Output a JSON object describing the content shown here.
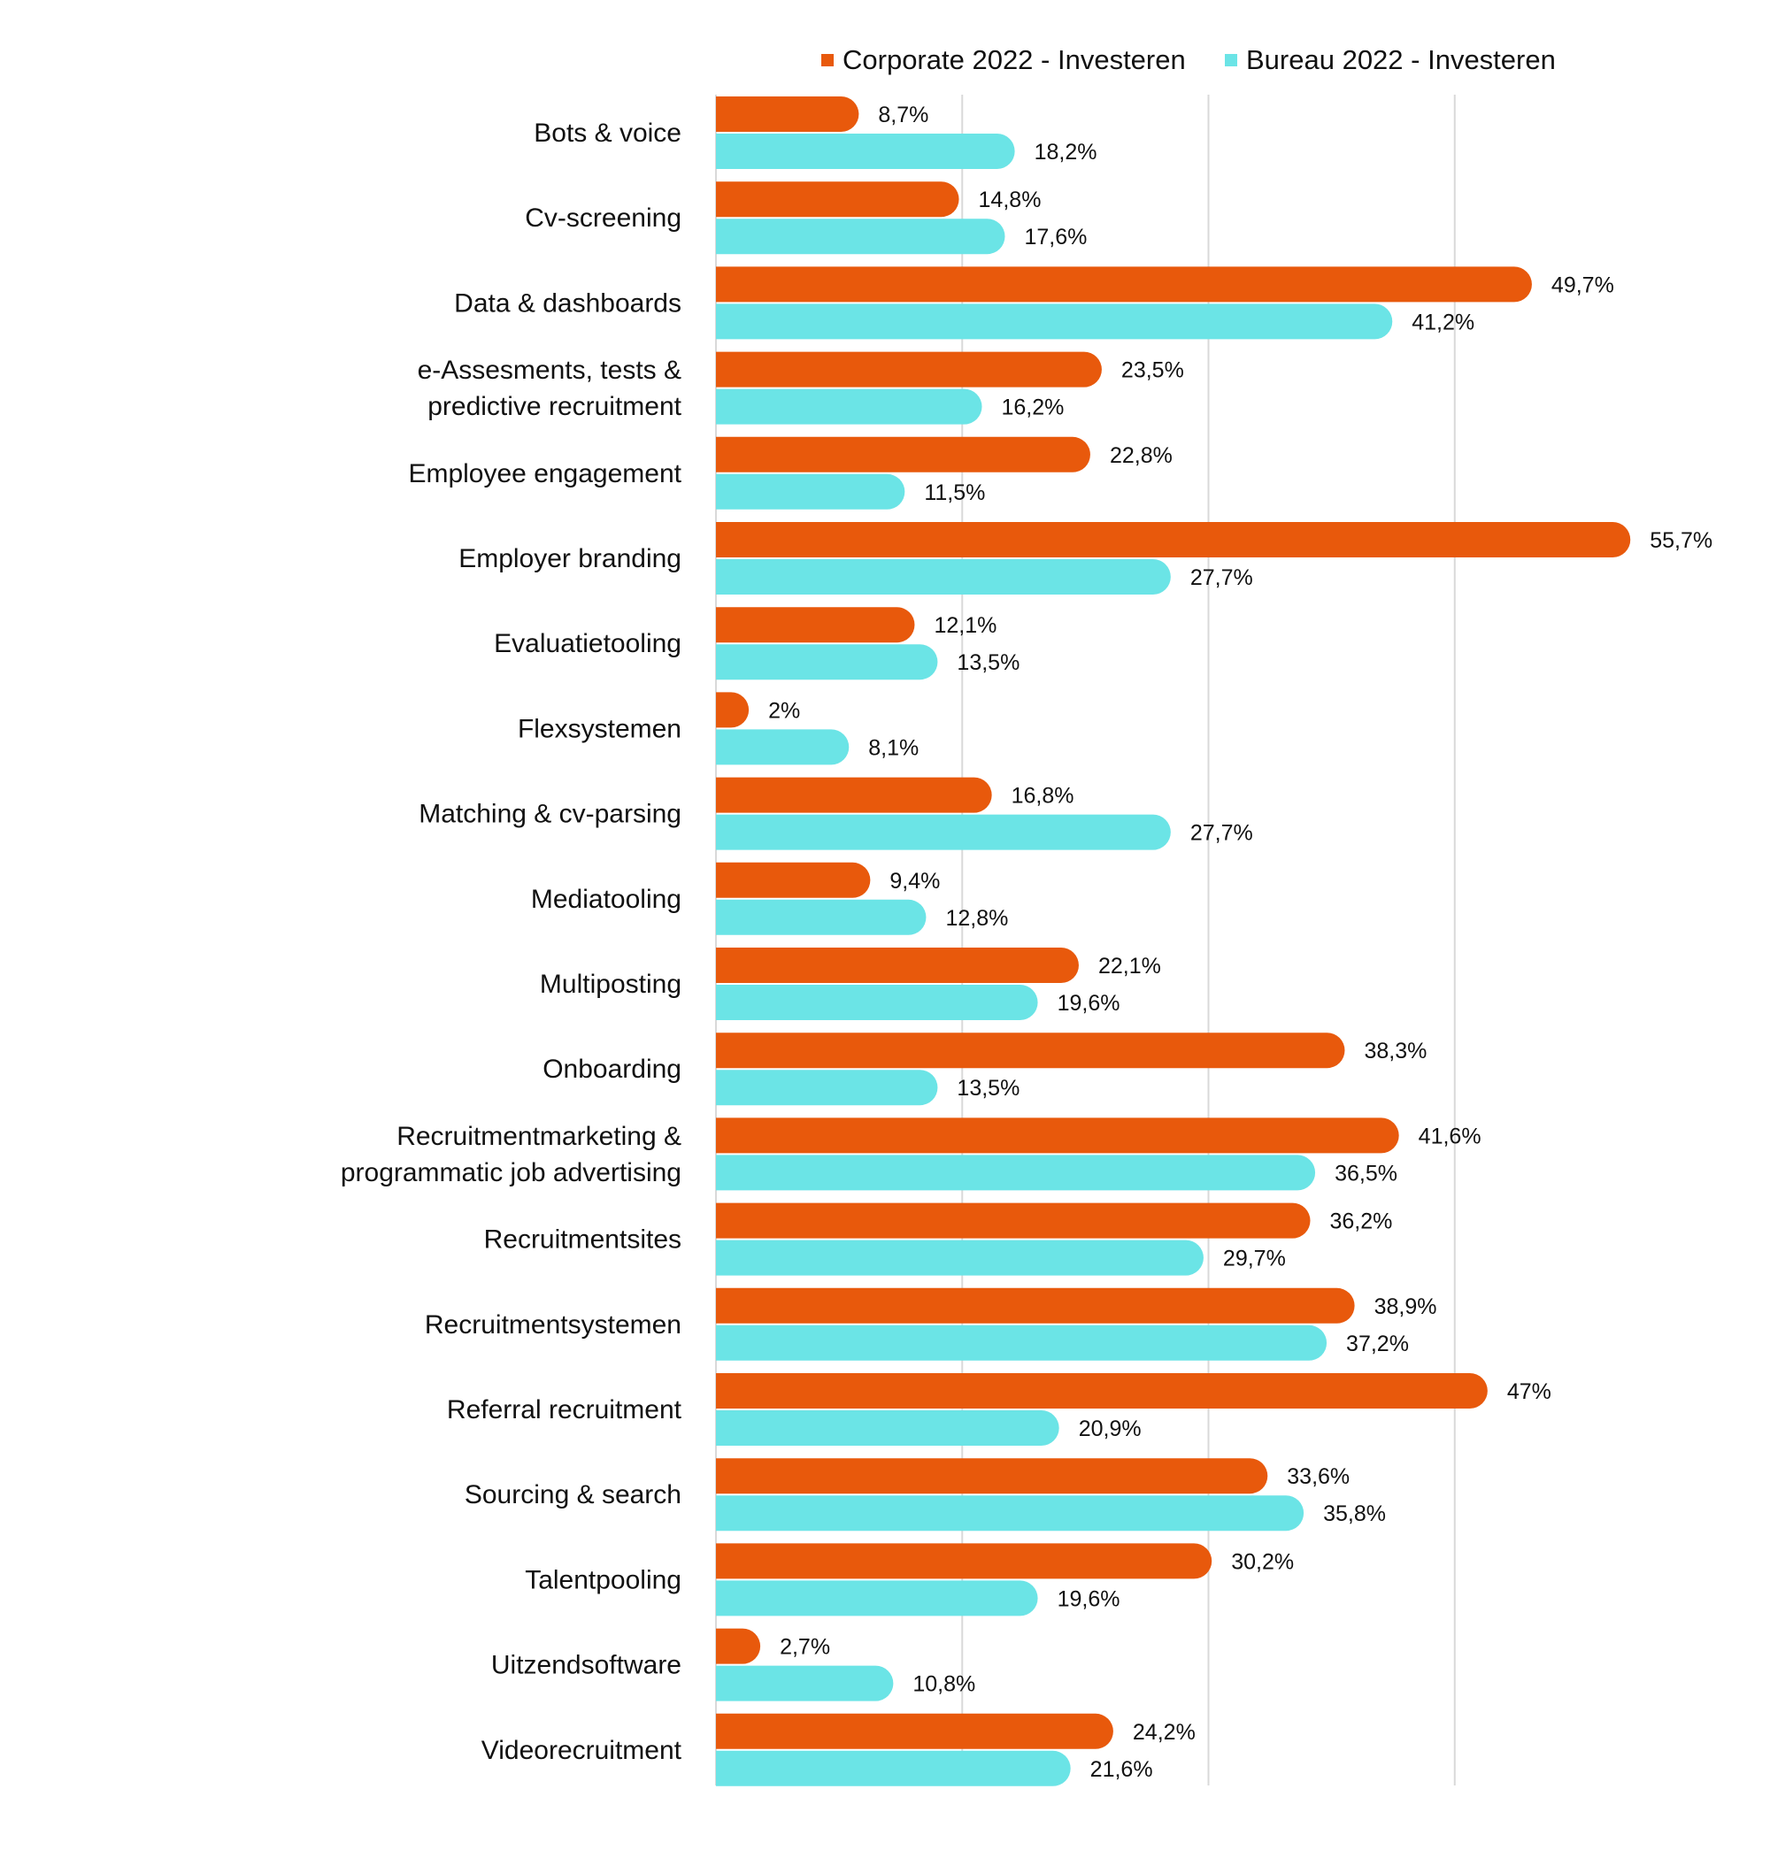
{
  "chart_data": {
    "type": "bar",
    "orientation": "horizontal",
    "title": "",
    "xlabel": "",
    "ylabel": "",
    "xlim": [
      0,
      60
    ],
    "grid": true,
    "legend_position": "top",
    "categories": [
      "Bots & voice",
      "Cv-screening",
      "Data & dashboards",
      "e-Assesments, tests & \npredictive recruitment",
      "Employee engagement",
      "Employer branding",
      "Evaluatietooling",
      "Flexsystemen",
      "Matching & cv-parsing",
      "Mediatooling",
      "Multiposting",
      "Onboarding",
      "Recruitmentmarketing & \nprogrammatic job advertising",
      "Recruitmentsites",
      "Recruitmentsystemen",
      "Referral recruitment",
      "Sourcing & search",
      "Talentpooling",
      "Uitzendsoftware",
      "Videorecruitment"
    ],
    "series": [
      {
        "name": "Corporate 2022 - Investeren",
        "color": "#E8590C",
        "values": [
          8.7,
          14.8,
          49.7,
          23.5,
          22.8,
          55.7,
          12.1,
          2,
          16.8,
          9.4,
          22.1,
          38.3,
          41.6,
          36.2,
          38.9,
          47,
          33.6,
          30.2,
          2.7,
          24.2
        ],
        "labels": [
          "8,7%",
          "14,8%",
          "49,7%",
          "23,5%",
          "22,8%",
          "55,7%",
          "12,1%",
          "2%",
          "16,8%",
          "9,4%",
          "22,1%",
          "38,3%",
          "41,6%",
          "36,2%",
          "38,9%",
          "47%",
          "33,6%",
          "30,2%",
          "2,7%",
          "24,2%"
        ]
      },
      {
        "name": "Bureau 2022 - Investeren",
        "color": "#6BE4E6",
        "values": [
          18.2,
          17.6,
          41.2,
          16.2,
          11.5,
          27.7,
          13.5,
          8.1,
          27.7,
          12.8,
          19.6,
          13.5,
          36.5,
          29.7,
          37.2,
          20.9,
          35.8,
          19.6,
          10.8,
          21.6
        ],
        "labels": [
          "18,2%",
          "17,6%",
          "41,2%",
          "16,2%",
          "11,5%",
          "27,7%",
          "13,5%",
          "8,1%",
          "27,7%",
          "12,8%",
          "19,6%",
          "13,5%",
          "36,5%",
          "29,7%",
          "37,2%",
          "20,9%",
          "35,8%",
          "19,6%",
          "10,8%",
          "21,6%"
        ]
      }
    ]
  }
}
